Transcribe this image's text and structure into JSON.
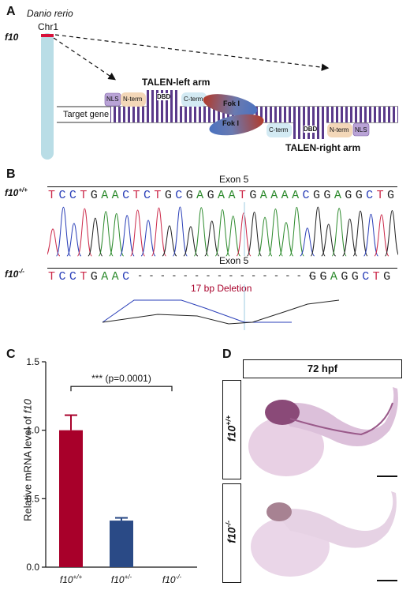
{
  "panel_a": {
    "letter": "A",
    "species": "Danio rerio",
    "chromosome": "Chr1",
    "gene": "f10",
    "target_gene_label": "Target gene",
    "left_arm_label": "TALEN-left arm",
    "right_arm_label": "TALEN-right arm",
    "nls": "NLS",
    "n_term": "N-term",
    "dbd": "DBD",
    "c_term": "C-term",
    "foki": "Fok I"
  },
  "panel_b": {
    "letter": "B",
    "genotype_wt": "f10",
    "genotype_wt_sup": "+/+",
    "genotype_ko": "f10",
    "genotype_ko_sup": "-/-",
    "exon_wt": "Exon 5",
    "exon_ko": "Exon 5",
    "seq_wt": [
      "T",
      "C",
      "C",
      "T",
      "G",
      "A",
      "A",
      "C",
      "T",
      "C",
      "T",
      "G",
      "C",
      "G",
      "A",
      "G",
      "A",
      "A",
      "T",
      "G",
      "A",
      "A",
      "A",
      "A",
      "C",
      "G",
      "G",
      "A",
      "G",
      "G",
      "C",
      "T",
      "G"
    ],
    "seq_ko_left": [
      "T",
      "C",
      "C",
      "T",
      "G",
      "A",
      "A",
      "C"
    ],
    "seq_ko_gap": "- - - - - - - - - - - - - - - - -",
    "seq_ko_right": [
      "G",
      "G",
      "A",
      "G",
      "G",
      "C",
      "T",
      "G"
    ],
    "deletion_label": "17 bp Deletion",
    "base_colors": {
      "A": "#2e8b2e",
      "C": "#2a3fb8",
      "G": "#222222",
      "T": "#cc2a4a"
    }
  },
  "panel_c": {
    "letter": "C",
    "chart_data": {
      "type": "bar",
      "categories": [
        "f10+/+",
        "f10+/-",
        "f10-/-"
      ],
      "category_base": [
        "f10",
        "f10",
        "f10"
      ],
      "category_sup": [
        "+/+",
        "+/-",
        "-/-"
      ],
      "values": [
        1.0,
        0.34,
        0.0
      ],
      "errors": [
        0.11,
        0.02,
        0.0
      ],
      "colors": [
        "#a8002a",
        "#2a4a86",
        "#888888"
      ],
      "ylabel": "Relative mRNA level of",
      "ylabel_gene": "f10",
      "ylim": [
        0,
        1.5
      ],
      "yticks": [
        "0.0",
        "0.5",
        "1.0",
        "1.5"
      ],
      "significance": "*** (p=0.0001)"
    }
  },
  "panel_d": {
    "letter": "D",
    "header": "72 hpf",
    "row_top_label": "f10",
    "row_top_sup": "+/+",
    "row_bottom_label": "f10",
    "row_bottom_sup": "-/-"
  }
}
